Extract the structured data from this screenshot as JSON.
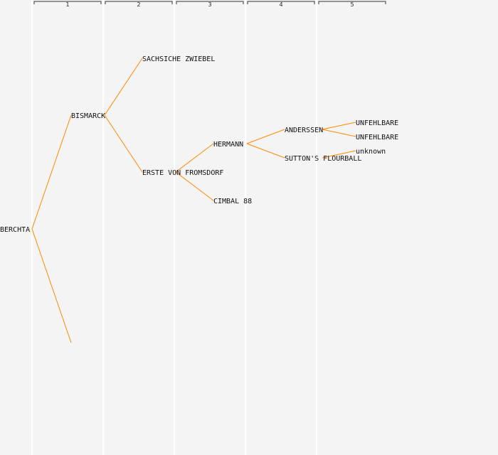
{
  "colors": {
    "background": "#f4f4f4",
    "edge": "#ff8800",
    "column_rule": "#ffffff",
    "header_bracket": "#333333",
    "text": "#111111"
  },
  "generation_headers": [
    "1",
    "2",
    "3",
    "4",
    "5"
  ],
  "pedigree": {
    "nodes": [
      {
        "id": "berchta",
        "label": "BERCHTA",
        "generation": 0
      },
      {
        "id": "bismarck",
        "label": "BISMARCK",
        "generation": 1
      },
      {
        "id": "gen1-unlabeled",
        "label": "",
        "generation": 1
      },
      {
        "id": "sachsiche-zwiebel",
        "label": "SACHSICHE ZWIEBEL",
        "generation": 2
      },
      {
        "id": "erste-von-fromsdorf",
        "label": "ERSTE VON FROMSDORF",
        "generation": 2
      },
      {
        "id": "hermann",
        "label": "HERMANN",
        "generation": 3
      },
      {
        "id": "cimbal-88",
        "label": "CIMBAL 88",
        "generation": 3
      },
      {
        "id": "anderssen",
        "label": "ANDERSSEN",
        "generation": 4
      },
      {
        "id": "suttons-flourball",
        "label": "SUTTON'S FLOURBALL",
        "generation": 4
      },
      {
        "id": "unfehlbare-1",
        "label": "UNFEHLBARE",
        "generation": 5
      },
      {
        "id": "unfehlbare-2",
        "label": "UNFEHLBARE",
        "generation": 5
      },
      {
        "id": "unknown",
        "label": "unknown",
        "generation": 5
      }
    ],
    "edges": [
      {
        "from": "berchta",
        "to": "bismarck"
      },
      {
        "from": "berchta",
        "to": "gen1-unlabeled"
      },
      {
        "from": "bismarck",
        "to": "sachsiche-zwiebel"
      },
      {
        "from": "bismarck",
        "to": "erste-von-fromsdorf"
      },
      {
        "from": "erste-von-fromsdorf",
        "to": "hermann"
      },
      {
        "from": "erste-von-fromsdorf",
        "to": "cimbal-88"
      },
      {
        "from": "hermann",
        "to": "anderssen"
      },
      {
        "from": "hermann",
        "to": "suttons-flourball"
      },
      {
        "from": "anderssen",
        "to": "unfehlbare-1"
      },
      {
        "from": "anderssen",
        "to": "unfehlbare-2"
      },
      {
        "from": "suttons-flourball",
        "to": "unknown"
      }
    ]
  }
}
